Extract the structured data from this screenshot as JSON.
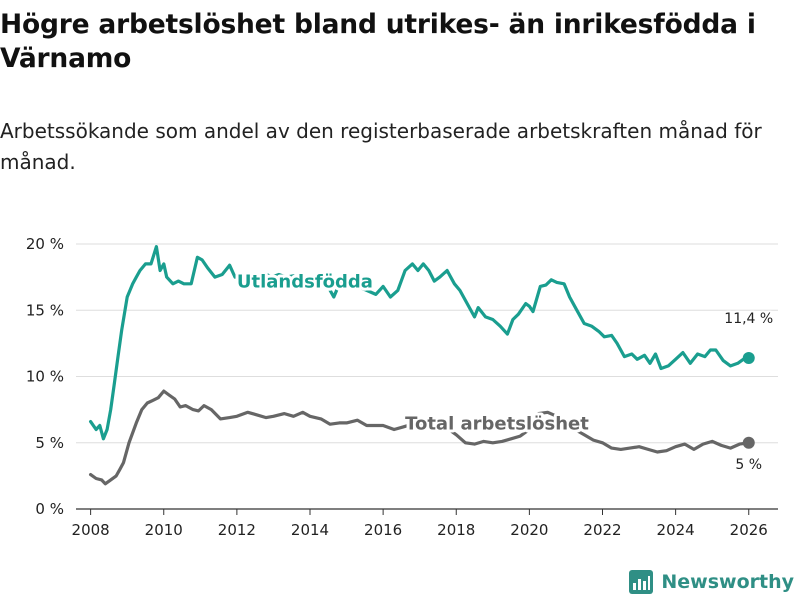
{
  "title": "Högre arbetslöshet bland utrikes- än inrikesfödda i Värnamo",
  "subtitle": "Arbetssökande som andel av den registerbaserade arbetskraften månad för månad.",
  "brand": {
    "name": "Newsworthy",
    "icon": "newsworthy-chart-icon",
    "color": "#2f8f85"
  },
  "chart_data": {
    "type": "line",
    "title": "Högre arbetslöshet bland utrikes- än inrikesfödda i Värnamo",
    "xlabel": "",
    "ylabel": "",
    "xlim": [
      2007.6,
      2026.8
    ],
    "ylim": [
      0,
      20
    ],
    "grid": true,
    "x_ticks": [
      2008,
      2010,
      2012,
      2014,
      2016,
      2018,
      2020,
      2022,
      2024,
      2026
    ],
    "x_tick_labels": [
      "2008",
      "2010",
      "2012",
      "2014",
      "2016",
      "2018",
      "2020",
      "2022",
      "2024",
      "2026"
    ],
    "y_ticks": [
      0,
      5,
      10,
      15,
      20
    ],
    "y_tick_labels": [
      "0 %",
      "5 %",
      "10 %",
      "15 %",
      "20 %"
    ],
    "series": [
      {
        "name": "Utlandsfödda",
        "color": "#1a9e8f",
        "end_label": "11,4 %",
        "x": [
          2008.0,
          2008.15,
          2008.25,
          2008.35,
          2008.45,
          2008.55,
          2008.65,
          2008.75,
          2008.85,
          2009.0,
          2009.15,
          2009.25,
          2009.35,
          2009.5,
          2009.65,
          2009.8,
          2009.9,
          2010.0,
          2010.08,
          2010.25,
          2010.4,
          2010.55,
          2010.75,
          2010.92,
          2011.05,
          2011.2,
          2011.4,
          2011.6,
          2011.8,
          2011.95,
          2012.15,
          2012.35,
          2012.55,
          2012.75,
          2012.95,
          2013.15,
          2013.35,
          2013.55,
          2013.75,
          2013.95,
          2014.2,
          2014.45,
          2014.65,
          2014.85,
          2015.05,
          2015.3,
          2015.55,
          2015.8,
          2016.0,
          2016.2,
          2016.4,
          2016.6,
          2016.8,
          2016.95,
          2017.1,
          2017.25,
          2017.4,
          2017.55,
          2017.75,
          2017.95,
          2018.1,
          2018.3,
          2018.5,
          2018.6,
          2018.8,
          2019.0,
          2019.2,
          2019.4,
          2019.55,
          2019.7,
          2019.9,
          2020.0,
          2020.1,
          2020.3,
          2020.45,
          2020.6,
          2020.75,
          2020.95,
          2021.1,
          2021.3,
          2021.5,
          2021.7,
          2021.9,
          2022.05,
          2022.25,
          2022.4,
          2022.6,
          2022.8,
          2022.95,
          2023.15,
          2023.3,
          2023.45,
          2023.6,
          2023.8,
          2024.0,
          2024.2,
          2024.4,
          2024.6,
          2024.8,
          2024.95,
          2025.1,
          2025.3,
          2025.5,
          2025.7,
          2025.85,
          2026.0
        ],
        "y": [
          6.6,
          6.0,
          6.3,
          5.3,
          6.0,
          7.5,
          9.5,
          11.5,
          13.5,
          16.0,
          17.0,
          17.5,
          18.0,
          18.5,
          18.5,
          19.8,
          18.0,
          18.5,
          17.5,
          17.0,
          17.2,
          17.0,
          17.0,
          19.0,
          18.8,
          18.2,
          17.5,
          17.7,
          18.4,
          17.5,
          17.7,
          17.5,
          17.6,
          17.8,
          17.5,
          17.7,
          17.5,
          17.6,
          17.2,
          17.3,
          17.4,
          17.0,
          16.0,
          17.3,
          17.0,
          16.8,
          16.5,
          16.2,
          16.8,
          16.0,
          16.5,
          18.0,
          18.5,
          18.0,
          18.5,
          18.0,
          17.2,
          17.5,
          18.0,
          17.0,
          16.5,
          15.5,
          14.5,
          15.2,
          14.5,
          14.3,
          13.8,
          13.2,
          14.3,
          14.7,
          15.5,
          15.3,
          14.9,
          16.8,
          16.9,
          17.3,
          17.1,
          17.0,
          16.0,
          15.0,
          14.0,
          13.8,
          13.4,
          13.0,
          13.1,
          12.5,
          11.5,
          11.7,
          11.3,
          11.6,
          11.0,
          11.7,
          10.6,
          10.8,
          11.3,
          11.8,
          11.0,
          11.7,
          11.5,
          12.0,
          12.0,
          11.2,
          10.8,
          11.0,
          11.3,
          11.4
        ]
      },
      {
        "name": "Total arbetslöshet",
        "color": "#666666",
        "end_label": "5 %",
        "x": [
          2008.0,
          2008.15,
          2008.3,
          2008.4,
          2008.55,
          2008.7,
          2008.8,
          2008.9,
          2009.05,
          2009.25,
          2009.4,
          2009.55,
          2009.7,
          2009.85,
          2010.0,
          2010.15,
          2010.3,
          2010.45,
          2010.6,
          2010.8,
          2010.95,
          2011.1,
          2011.3,
          2011.55,
          2011.8,
          2012.0,
          2012.3,
          2012.55,
          2012.8,
          2013.0,
          2013.3,
          2013.55,
          2013.8,
          2014.0,
          2014.3,
          2014.55,
          2014.8,
          2015.0,
          2015.3,
          2015.55,
          2015.8,
          2016.0,
          2016.3,
          2016.55,
          2016.8,
          2017.0,
          2017.3,
          2017.55,
          2017.8,
          2018.0,
          2018.25,
          2018.5,
          2018.75,
          2019.0,
          2019.25,
          2019.5,
          2019.75,
          2020.0,
          2020.25,
          2020.5,
          2020.75,
          2021.0,
          2021.25,
          2021.5,
          2021.75,
          2022.0,
          2022.25,
          2022.5,
          2022.75,
          2023.0,
          2023.25,
          2023.5,
          2023.75,
          2024.0,
          2024.25,
          2024.5,
          2024.75,
          2025.0,
          2025.25,
          2025.5,
          2025.75,
          2026.0
        ],
        "y": [
          2.6,
          2.3,
          2.2,
          1.9,
          2.2,
          2.5,
          3.0,
          3.5,
          5.0,
          6.5,
          7.5,
          8.0,
          8.2,
          8.4,
          8.9,
          8.6,
          8.3,
          7.7,
          7.8,
          7.5,
          7.4,
          7.8,
          7.5,
          6.8,
          6.9,
          7.0,
          7.3,
          7.1,
          6.9,
          7.0,
          7.2,
          7.0,
          7.3,
          7.0,
          6.8,
          6.4,
          6.5,
          6.5,
          6.7,
          6.3,
          6.3,
          6.3,
          6.0,
          6.2,
          6.4,
          6.5,
          6.3,
          6.2,
          6.0,
          5.6,
          5.0,
          4.9,
          5.1,
          5.0,
          5.1,
          5.3,
          5.5,
          6.0,
          7.2,
          7.3,
          7.0,
          6.6,
          6.0,
          5.6,
          5.2,
          5.0,
          4.6,
          4.5,
          4.6,
          4.7,
          4.5,
          4.3,
          4.4,
          4.7,
          4.9,
          4.5,
          4.9,
          5.1,
          4.8,
          4.6,
          4.9,
          5.0
        ]
      }
    ]
  }
}
